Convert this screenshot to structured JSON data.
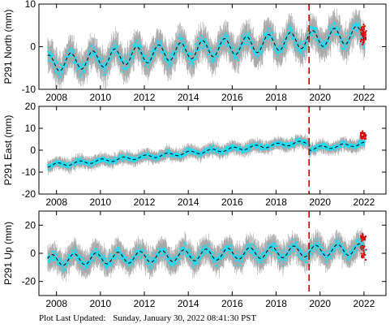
{
  "footer": {
    "label": "Plot Last Updated:",
    "timestamp": "Sunday, January 30, 2022 08:41:30 PST"
  },
  "colors": {
    "daily_points": "#00e5ff",
    "error_bars": "#a8a8a8",
    "model_line": "#000000",
    "rapid_points": "#dd0000",
    "event_line": "#cc0000"
  },
  "chart_data": [
    {
      "type": "scatter",
      "ylabel": "P291 North (mm)",
      "xlim": [
        2007.2,
        2023.0
      ],
      "ylim": [
        -10,
        10
      ],
      "yticks": [
        -10,
        0,
        10
      ],
      "xticks": [
        2008,
        2010,
        2012,
        2014,
        2016,
        2018,
        2020,
        2022
      ],
      "event_line_x": 2019.5,
      "trend_model": {
        "start": -4.0,
        "end": 3.0,
        "annual_amplitude": 2.0,
        "phase": 0.6
      },
      "scatter_noise": 2.0,
      "rapid_end_values": [
        3.5,
        1.5,
        4.5,
        2.5
      ]
    },
    {
      "type": "scatter",
      "ylabel": "P291 East (mm)",
      "xlim": [
        2007.2,
        2023.0
      ],
      "ylim": [
        -20,
        20
      ],
      "yticks": [
        -20,
        -10,
        0,
        10,
        20
      ],
      "xticks": [
        2008,
        2010,
        2012,
        2014,
        2016,
        2018,
        2020,
        2022
      ],
      "event_line_x": 2019.5,
      "trend_model": {
        "start": -7.0,
        "end": 6.0,
        "annual_amplitude": 0.8,
        "phase": 0.2
      },
      "post_event_offset": -3.0,
      "scatter_noise": 1.6,
      "rapid_end_values": [
        6.5,
        8.0,
        7.0,
        5.5
      ]
    },
    {
      "type": "scatter",
      "ylabel": "P291 Up (mm)",
      "xlim": [
        2007.2,
        2023.0
      ],
      "ylim": [
        -30,
        30
      ],
      "yticks": [
        -20,
        0,
        20
      ],
      "xticks": [
        2008,
        2010,
        2012,
        2014,
        2016,
        2018,
        2020,
        2022
      ],
      "event_line_x": 2019.5,
      "trend_model": {
        "start": -5.0,
        "end": 3.0,
        "annual_amplitude": 4.0,
        "phase": 0.45
      },
      "scatter_noise": 5.0,
      "rapid_end_values": [
        10.0,
        4.0,
        -2.0,
        12.0
      ]
    }
  ]
}
